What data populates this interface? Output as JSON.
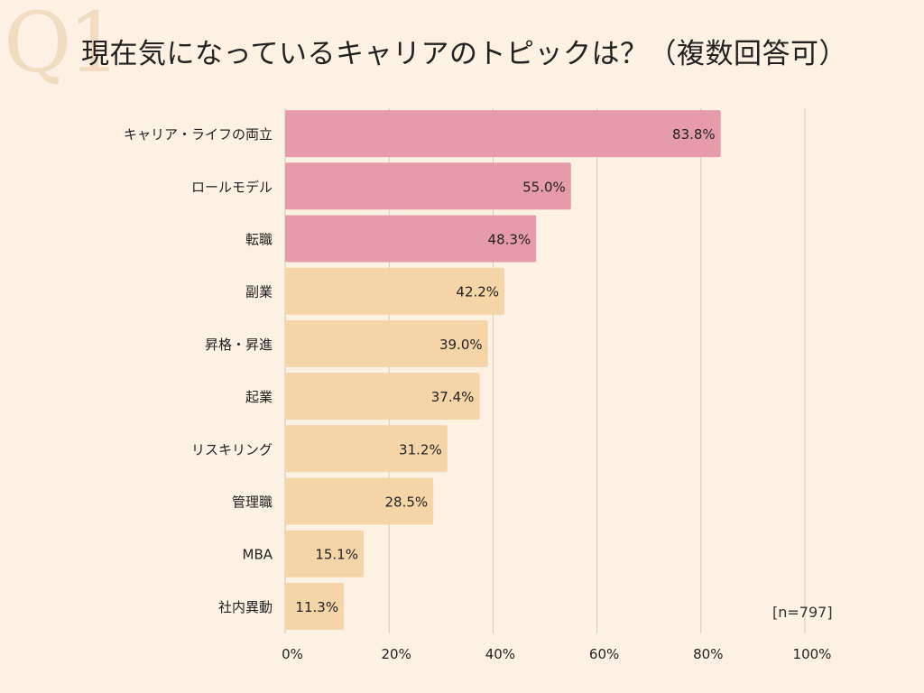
{
  "watermark": "Q1",
  "title": "現在気になっているキャリアのトピックは？（複数回答可）",
  "sample_note": "[n=797]",
  "colors": {
    "background": "#fdf1e4",
    "highlight_bar": "#e59bab",
    "normal_bar": "#f5d4a8",
    "gridline": "#d7cbbd"
  },
  "chart_data": {
    "type": "bar",
    "orientation": "horizontal",
    "title": "現在気になっているキャリアのトピックは？（複数回答可）",
    "categories": [
      "キャリア・ライフの両立",
      "ロールモデル",
      "転職",
      "副業",
      "昇格・昇進",
      "起業",
      "リスキリング",
      "管理職",
      "MBA",
      "社内異動"
    ],
    "values": [
      83.8,
      55.0,
      48.3,
      42.2,
      39.0,
      37.4,
      31.2,
      28.5,
      15.1,
      11.3
    ],
    "value_labels": [
      "83.8%",
      "55.0%",
      "48.3%",
      "42.2%",
      "39.0%",
      "37.4%",
      "31.2%",
      "28.5%",
      "15.1%",
      "11.3%"
    ],
    "highlighted_top": 3,
    "xlim": [
      0,
      100
    ],
    "xticks": [
      0,
      20,
      40,
      60,
      80,
      100
    ],
    "xtick_labels": [
      "0%",
      "20%",
      "40%",
      "60%",
      "80%",
      "100%"
    ],
    "grid": true,
    "xlabel": "",
    "ylabel": ""
  }
}
